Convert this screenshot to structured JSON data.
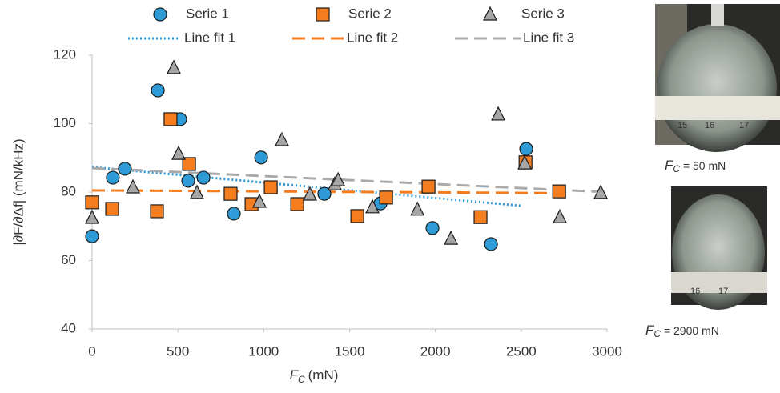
{
  "chart_data": {
    "type": "scatter",
    "xlabel": "F",
    "xlabel_sub": "C",
    "xlabel_unit": "(mN)",
    "ylabel": "|∂F/∂Δf|  (mN/kHz)",
    "xlim": [
      0,
      3000
    ],
    "xticks": [
      0,
      500,
      1000,
      1500,
      2000,
      2500,
      3000
    ],
    "ylim": [
      40,
      120
    ],
    "yticks": [
      40,
      60,
      80,
      100,
      120
    ],
    "series": [
      {
        "name": "Serie 1",
        "color": "#2e9bd6",
        "marker": "circle",
        "x": [
          0,
          121,
          191,
          383,
          513,
          560,
          649,
          826,
          985,
          1353,
          1680,
          1983,
          2324,
          2529
        ],
        "values": [
          67.1,
          84.2,
          86.8,
          109.7,
          101.3,
          83.3,
          84.2,
          73.7,
          90.1,
          79.5,
          76.7,
          69.5,
          64.8,
          92.6
        ]
      },
      {
        "name": "Serie 2",
        "color": "#f47d20",
        "marker": "square",
        "x": [
          0,
          117,
          378,
          457,
          565,
          807,
          929,
          1041,
          1195,
          1545,
          1713,
          1960,
          2263,
          2525,
          2721
        ],
        "values": [
          77.0,
          75.1,
          74.4,
          101.3,
          88.2,
          79.5,
          76.5,
          81.4,
          76.5,
          73.0,
          78.4,
          81.6,
          72.7,
          88.7,
          80.2
        ]
      },
      {
        "name": "Serie 3",
        "color": "#a6a6a6",
        "marker": "triangle",
        "x": [
          0,
          238,
          476,
          504,
          611,
          975,
          1106,
          1269,
          1414,
          1433,
          1633,
          1895,
          2091,
          2366,
          2520,
          2725,
          2963
        ],
        "values": [
          72.5,
          81.4,
          116.3,
          91.2,
          79.8,
          77.2,
          95.2,
          79.3,
          82.3,
          83.5,
          75.6,
          74.9,
          66.4,
          102.7,
          88.4,
          72.7,
          79.8
        ]
      },
      {
        "name": "Line fit 1",
        "color": "#2e9bd6",
        "line_style": "dotted",
        "x": [
          0,
          2500
        ],
        "values": [
          87.3,
          76.0
        ]
      },
      {
        "name": "Line fit 2",
        "color": "#f47d20",
        "line_style": "dashed",
        "x": [
          0,
          2700
        ],
        "values": [
          80.5,
          79.7
        ]
      },
      {
        "name": "Line fit 3",
        "color": "#aaaaaa",
        "line_style": "dashed",
        "x": [
          0,
          3000
        ],
        "values": [
          87.0,
          80.0
        ]
      }
    ]
  },
  "photos": [
    {
      "var": "F",
      "sub": "C",
      "rest": " = 50 mN"
    },
    {
      "var": "F",
      "sub": "C",
      "rest": " = 2900 mN"
    }
  ]
}
